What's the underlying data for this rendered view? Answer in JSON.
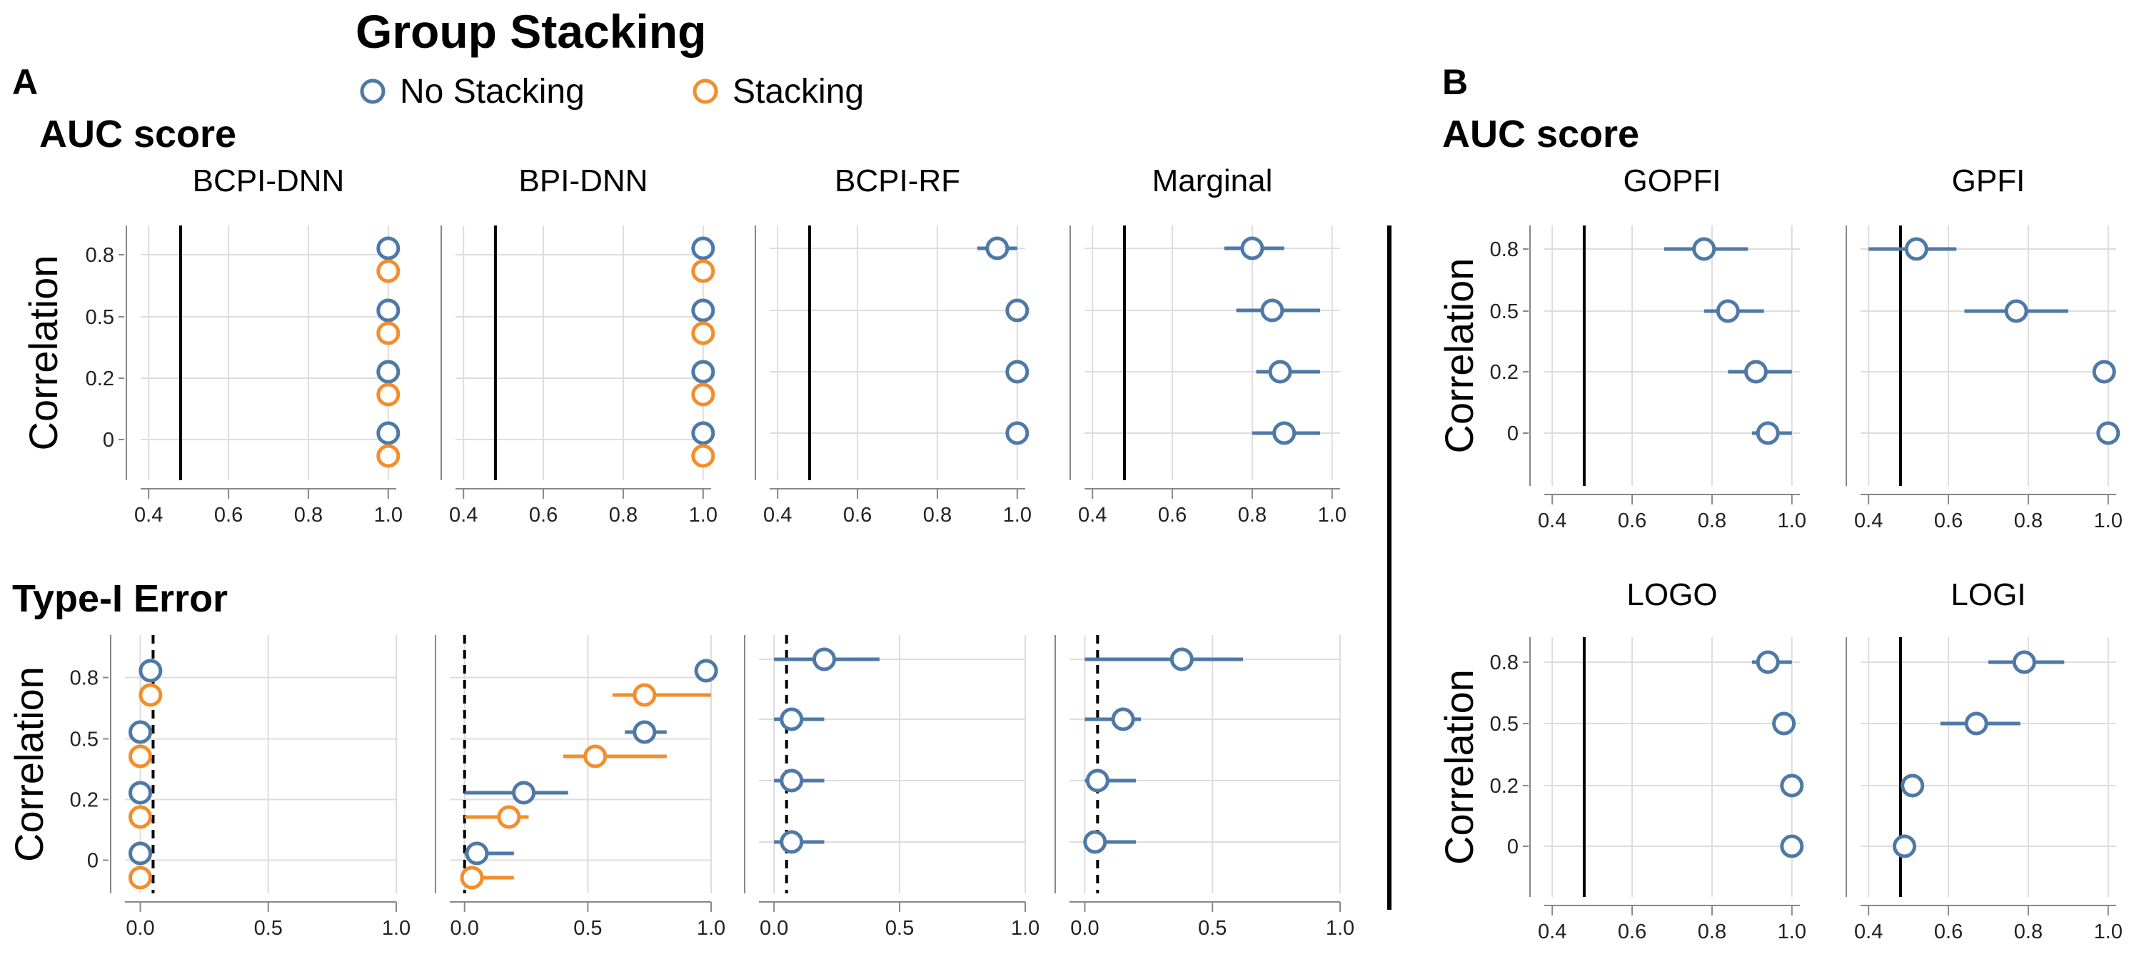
{
  "legend": {
    "title": "Group Stacking",
    "items": [
      {
        "label": "No Stacking",
        "color": "#4e79a7"
      },
      {
        "label": "Stacking",
        "color": "#f28e2b"
      }
    ]
  },
  "panels": {
    "A": "A",
    "B": "B"
  },
  "sections": {
    "a_auc": "AUC score",
    "a_type1": "Type-I Error",
    "b_auc": "AUC score"
  },
  "colors": {
    "no_stacking": "#4e79a7",
    "stacking": "#f28e2b",
    "grid": "#dddddd",
    "axis": "#888888",
    "reference": "#000000"
  },
  "chart_data": [
    {
      "id": "a-auc-bcpi-dnn",
      "type": "dot-interval",
      "section": "AUC score",
      "title": "BCPI-DNN",
      "xlabel": "",
      "ylabel": "Correlation",
      "xlim": [
        0.38,
        1.02
      ],
      "xticks": [
        0.4,
        0.6,
        0.8,
        1.0
      ],
      "xtick_labels": [
        "0.4",
        "0.6",
        "0.8",
        "1.0"
      ],
      "ytick_labels": [
        "0.8",
        "0.5",
        "0.2",
        "0"
      ],
      "reference_line": {
        "x": 0.48,
        "style": "solid"
      },
      "series": [
        {
          "name": "No Stacking",
          "points": [
            {
              "correlation": 0.8,
              "estimate": 1.0,
              "low": 1.0,
              "high": 1.0
            },
            {
              "correlation": 0.5,
              "estimate": 1.0,
              "low": 1.0,
              "high": 1.0
            },
            {
              "correlation": 0.2,
              "estimate": 1.0,
              "low": 1.0,
              "high": 1.0
            },
            {
              "correlation": 0,
              "estimate": 1.0,
              "low": 1.0,
              "high": 1.0
            }
          ]
        },
        {
          "name": "Stacking",
          "points": [
            {
              "correlation": 0.8,
              "estimate": 1.0,
              "low": 1.0,
              "high": 1.0
            },
            {
              "correlation": 0.5,
              "estimate": 1.0,
              "low": 1.0,
              "high": 1.0
            },
            {
              "correlation": 0.2,
              "estimate": 1.0,
              "low": 1.0,
              "high": 1.0
            },
            {
              "correlation": 0,
              "estimate": 1.0,
              "low": 1.0,
              "high": 1.0
            }
          ]
        }
      ]
    },
    {
      "id": "a-auc-bpi-dnn",
      "type": "dot-interval",
      "section": "AUC score",
      "title": "BPI-DNN",
      "xlabel": "",
      "ylabel": "",
      "xlim": [
        0.38,
        1.02
      ],
      "xticks": [
        0.4,
        0.6,
        0.8,
        1.0
      ],
      "xtick_labels": [
        "0.4",
        "0.6",
        "0.8",
        "1.0"
      ],
      "ytick_labels": [],
      "reference_line": {
        "x": 0.48,
        "style": "solid"
      },
      "series": [
        {
          "name": "No Stacking",
          "points": [
            {
              "correlation": 0.8,
              "estimate": 1.0,
              "low": 1.0,
              "high": 1.0
            },
            {
              "correlation": 0.5,
              "estimate": 1.0,
              "low": 1.0,
              "high": 1.0
            },
            {
              "correlation": 0.2,
              "estimate": 1.0,
              "low": 1.0,
              "high": 1.0
            },
            {
              "correlation": 0,
              "estimate": 1.0,
              "low": 1.0,
              "high": 1.0
            }
          ]
        },
        {
          "name": "Stacking",
          "points": [
            {
              "correlation": 0.8,
              "estimate": 1.0,
              "low": 1.0,
              "high": 1.0
            },
            {
              "correlation": 0.5,
              "estimate": 1.0,
              "low": 1.0,
              "high": 1.0
            },
            {
              "correlation": 0.2,
              "estimate": 1.0,
              "low": 1.0,
              "high": 1.0
            },
            {
              "correlation": 0,
              "estimate": 1.0,
              "low": 1.0,
              "high": 1.0
            }
          ]
        }
      ]
    },
    {
      "id": "a-auc-bcpi-rf",
      "type": "dot-interval",
      "section": "AUC score",
      "title": "BCPI-RF",
      "xlabel": "",
      "ylabel": "",
      "xlim": [
        0.38,
        1.02
      ],
      "xticks": [
        0.4,
        0.6,
        0.8,
        1.0
      ],
      "xtick_labels": [
        "0.4",
        "0.6",
        "0.8",
        "1.0"
      ],
      "ytick_labels": [],
      "reference_line": {
        "x": 0.48,
        "style": "solid"
      },
      "series": [
        {
          "name": "No Stacking",
          "points": [
            {
              "correlation": 0.8,
              "estimate": 0.95,
              "low": 0.9,
              "high": 1.0
            },
            {
              "correlation": 0.5,
              "estimate": 1.0,
              "low": 1.0,
              "high": 1.0
            },
            {
              "correlation": 0.2,
              "estimate": 1.0,
              "low": 1.0,
              "high": 1.0
            },
            {
              "correlation": 0,
              "estimate": 1.0,
              "low": 1.0,
              "high": 1.0
            }
          ]
        }
      ]
    },
    {
      "id": "a-auc-marginal",
      "type": "dot-interval",
      "section": "AUC score",
      "title": "Marginal",
      "xlabel": "",
      "ylabel": "",
      "xlim": [
        0.38,
        1.02
      ],
      "xticks": [
        0.4,
        0.6,
        0.8,
        1.0
      ],
      "xtick_labels": [
        "0.4",
        "0.6",
        "0.8",
        "1.0"
      ],
      "ytick_labels": [],
      "reference_line": {
        "x": 0.48,
        "style": "solid"
      },
      "series": [
        {
          "name": "No Stacking",
          "points": [
            {
              "correlation": 0.8,
              "estimate": 0.8,
              "low": 0.73,
              "high": 0.88
            },
            {
              "correlation": 0.5,
              "estimate": 0.85,
              "low": 0.76,
              "high": 0.97
            },
            {
              "correlation": 0.2,
              "estimate": 0.87,
              "low": 0.81,
              "high": 0.97
            },
            {
              "correlation": 0,
              "estimate": 0.88,
              "low": 0.8,
              "high": 0.97
            }
          ]
        }
      ]
    },
    {
      "id": "a-type1-bcpi-dnn",
      "type": "dot-interval",
      "section": "Type-I Error",
      "title": "",
      "xlabel": "",
      "ylabel": "Correlation",
      "xlim": [
        -0.06,
        1.0
      ],
      "xticks": [
        0.0,
        0.5,
        1.0
      ],
      "xtick_labels": [
        "0.0",
        "0.5",
        "1.0"
      ],
      "ytick_labels": [
        "0.8",
        "0.5",
        "0.2",
        "0"
      ],
      "reference_line": {
        "x": 0.05,
        "style": "dashed"
      },
      "series": [
        {
          "name": "No Stacking",
          "points": [
            {
              "correlation": 0.8,
              "estimate": 0.04,
              "low": 0.04,
              "high": 0.04
            },
            {
              "correlation": 0.5,
              "estimate": 0.0,
              "low": 0.0,
              "high": 0.0
            },
            {
              "correlation": 0.2,
              "estimate": 0.0,
              "low": 0.0,
              "high": 0.0
            },
            {
              "correlation": 0,
              "estimate": 0.0,
              "low": 0.0,
              "high": 0.0
            }
          ]
        },
        {
          "name": "Stacking",
          "points": [
            {
              "correlation": 0.8,
              "estimate": 0.04,
              "low": 0.04,
              "high": 0.04
            },
            {
              "correlation": 0.5,
              "estimate": 0.0,
              "low": 0.0,
              "high": 0.0
            },
            {
              "correlation": 0.2,
              "estimate": 0.0,
              "low": 0.0,
              "high": 0.0
            },
            {
              "correlation": 0,
              "estimate": 0.0,
              "low": 0.0,
              "high": 0.0
            }
          ]
        }
      ]
    },
    {
      "id": "a-type1-bpi-dnn",
      "type": "dot-interval",
      "section": "Type-I Error",
      "title": "",
      "xlabel": "",
      "ylabel": "",
      "xlim": [
        -0.06,
        1.0
      ],
      "xticks": [
        0.0,
        0.5,
        1.0
      ],
      "xtick_labels": [
        "0.0",
        "0.5",
        "1.0"
      ],
      "ytick_labels": [],
      "reference_line": {
        "x": 0.0,
        "style": "dashed"
      },
      "series": [
        {
          "name": "No Stacking",
          "points": [
            {
              "correlation": 0.8,
              "estimate": 0.98,
              "low": 0.98,
              "high": 0.98
            },
            {
              "correlation": 0.5,
              "estimate": 0.73,
              "low": 0.65,
              "high": 0.82
            },
            {
              "correlation": 0.2,
              "estimate": 0.24,
              "low": 0.0,
              "high": 0.42
            },
            {
              "correlation": 0,
              "estimate": 0.05,
              "low": 0.0,
              "high": 0.2
            }
          ]
        },
        {
          "name": "Stacking",
          "points": [
            {
              "correlation": 0.8,
              "estimate": 0.73,
              "low": 0.6,
              "high": 1.0
            },
            {
              "correlation": 0.5,
              "estimate": 0.53,
              "low": 0.4,
              "high": 0.82
            },
            {
              "correlation": 0.2,
              "estimate": 0.18,
              "low": 0.0,
              "high": 0.26
            },
            {
              "correlation": 0,
              "estimate": 0.03,
              "low": 0.0,
              "high": 0.2
            }
          ]
        }
      ]
    },
    {
      "id": "a-type1-bcpi-rf",
      "type": "dot-interval",
      "section": "Type-I Error",
      "title": "",
      "xlabel": "",
      "ylabel": "",
      "xlim": [
        -0.06,
        1.0
      ],
      "xticks": [
        0.0,
        0.5,
        1.0
      ],
      "xtick_labels": [
        "0.0",
        "0.5",
        "1.0"
      ],
      "ytick_labels": [],
      "reference_line": {
        "x": 0.05,
        "style": "dashed"
      },
      "series": [
        {
          "name": "No Stacking",
          "points": [
            {
              "correlation": 0.8,
              "estimate": 0.2,
              "low": 0.0,
              "high": 0.42
            },
            {
              "correlation": 0.5,
              "estimate": 0.07,
              "low": 0.0,
              "high": 0.2
            },
            {
              "correlation": 0.2,
              "estimate": 0.07,
              "low": 0.0,
              "high": 0.2
            },
            {
              "correlation": 0,
              "estimate": 0.07,
              "low": 0.0,
              "high": 0.2
            }
          ]
        }
      ]
    },
    {
      "id": "a-type1-marginal",
      "type": "dot-interval",
      "section": "Type-I Error",
      "title": "",
      "xlabel": "",
      "ylabel": "",
      "xlim": [
        -0.06,
        1.0
      ],
      "xticks": [
        0.0,
        0.5,
        1.0
      ],
      "xtick_labels": [
        "0.0",
        "0.5",
        "1.0"
      ],
      "ytick_labels": [],
      "reference_line": {
        "x": 0.05,
        "style": "dashed"
      },
      "series": [
        {
          "name": "No Stacking",
          "points": [
            {
              "correlation": 0.8,
              "estimate": 0.38,
              "low": 0.0,
              "high": 0.62
            },
            {
              "correlation": 0.5,
              "estimate": 0.15,
              "low": 0.0,
              "high": 0.22
            },
            {
              "correlation": 0.2,
              "estimate": 0.05,
              "low": 0.0,
              "high": 0.2
            },
            {
              "correlation": 0,
              "estimate": 0.04,
              "low": 0.0,
              "high": 0.2
            }
          ]
        }
      ]
    },
    {
      "id": "b-auc-gopfi",
      "type": "dot-interval",
      "section": "AUC score",
      "title": "GOPFI",
      "xlabel": "",
      "ylabel": "Correlation",
      "xlim": [
        0.38,
        1.02
      ],
      "xticks": [
        0.4,
        0.6,
        0.8,
        1.0
      ],
      "xtick_labels": [
        "0.4",
        "0.6",
        "0.8",
        "1.0"
      ],
      "ytick_labels": [
        "0.8",
        "0.5",
        "0.2",
        "0"
      ],
      "reference_line": {
        "x": 0.48,
        "style": "solid"
      },
      "series": [
        {
          "name": "No Stacking",
          "points": [
            {
              "correlation": 0.8,
              "estimate": 0.78,
              "low": 0.68,
              "high": 0.89
            },
            {
              "correlation": 0.5,
              "estimate": 0.84,
              "low": 0.78,
              "high": 0.93
            },
            {
              "correlation": 0.2,
              "estimate": 0.91,
              "low": 0.84,
              "high": 1.0
            },
            {
              "correlation": 0,
              "estimate": 0.94,
              "low": 0.9,
              "high": 1.0
            }
          ]
        }
      ]
    },
    {
      "id": "b-auc-gpfi",
      "type": "dot-interval",
      "section": "AUC score",
      "title": "GPFI",
      "xlabel": "",
      "ylabel": "",
      "xlim": [
        0.38,
        1.02
      ],
      "xticks": [
        0.4,
        0.6,
        0.8,
        1.0
      ],
      "xtick_labels": [
        "0.4",
        "0.6",
        "0.8",
        "1.0"
      ],
      "ytick_labels": [],
      "reference_line": {
        "x": 0.48,
        "style": "solid"
      },
      "series": [
        {
          "name": "No Stacking",
          "points": [
            {
              "correlation": 0.8,
              "estimate": 0.52,
              "low": 0.4,
              "high": 0.62
            },
            {
              "correlation": 0.5,
              "estimate": 0.77,
              "low": 0.64,
              "high": 0.9
            },
            {
              "correlation": 0.2,
              "estimate": 0.99,
              "low": 0.99,
              "high": 0.99
            },
            {
              "correlation": 0,
              "estimate": 1.0,
              "low": 1.0,
              "high": 1.0
            }
          ]
        }
      ]
    },
    {
      "id": "b-auc-logo",
      "type": "dot-interval",
      "section": "AUC score",
      "title": "LOGO",
      "xlabel": "",
      "ylabel": "Correlation",
      "xlim": [
        0.38,
        1.02
      ],
      "xticks": [
        0.4,
        0.6,
        0.8,
        1.0
      ],
      "xtick_labels": [
        "0.4",
        "0.6",
        "0.8",
        "1.0"
      ],
      "ytick_labels": [
        "0.8",
        "0.5",
        "0.2",
        "0"
      ],
      "reference_line": {
        "x": 0.48,
        "style": "solid"
      },
      "series": [
        {
          "name": "No Stacking",
          "points": [
            {
              "correlation": 0.8,
              "estimate": 0.94,
              "low": 0.9,
              "high": 1.0
            },
            {
              "correlation": 0.5,
              "estimate": 0.98,
              "low": 0.98,
              "high": 0.98
            },
            {
              "correlation": 0.2,
              "estimate": 1.0,
              "low": 1.0,
              "high": 1.0
            },
            {
              "correlation": 0,
              "estimate": 1.0,
              "low": 1.0,
              "high": 1.0
            }
          ]
        }
      ]
    },
    {
      "id": "b-auc-logi",
      "type": "dot-interval",
      "section": "AUC score",
      "title": "LOGI",
      "xlabel": "",
      "ylabel": "",
      "xlim": [
        0.38,
        1.02
      ],
      "xticks": [
        0.4,
        0.6,
        0.8,
        1.0
      ],
      "xtick_labels": [
        "0.4",
        "0.6",
        "0.8",
        "1.0"
      ],
      "ytick_labels": [],
      "reference_line": {
        "x": 0.48,
        "style": "solid"
      },
      "series": [
        {
          "name": "No Stacking",
          "points": [
            {
              "correlation": 0.8,
              "estimate": 0.79,
              "low": 0.7,
              "high": 0.89
            },
            {
              "correlation": 0.5,
              "estimate": 0.67,
              "low": 0.58,
              "high": 0.78
            },
            {
              "correlation": 0.2,
              "estimate": 0.51,
              "low": 0.51,
              "high": 0.51
            },
            {
              "correlation": 0,
              "estimate": 0.49,
              "low": 0.49,
              "high": 0.49
            }
          ]
        }
      ]
    }
  ]
}
